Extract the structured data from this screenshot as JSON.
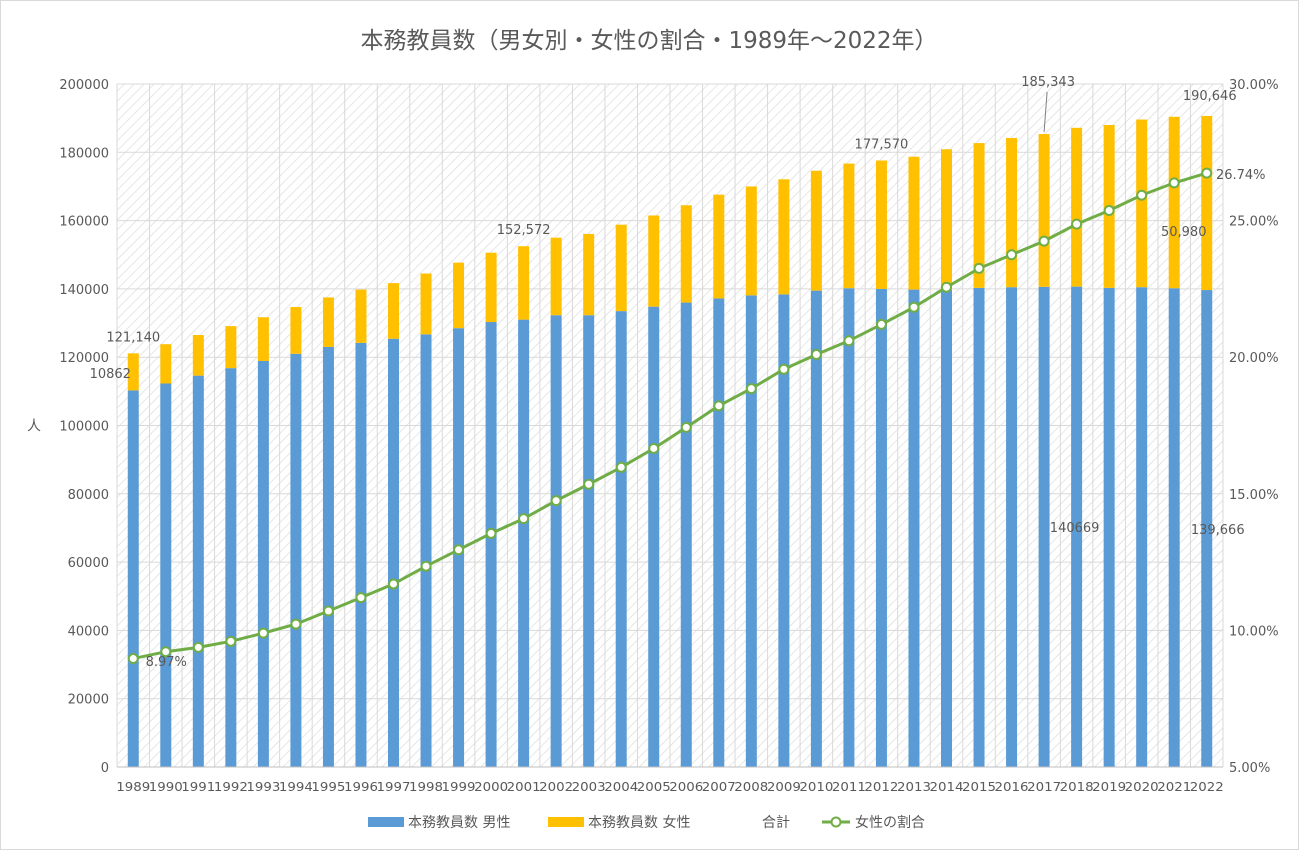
{
  "chart_data": {
    "type": "bar",
    "title": "本務教員数（男女別・女性の割合・1989年～2022年）",
    "ylabel": "人",
    "ylim": [
      0,
      200000
    ],
    "y_ticks": [
      "0",
      "20000",
      "40000",
      "60000",
      "80000",
      "100000",
      "120000",
      "140000",
      "160000",
      "180000",
      "200000"
    ],
    "y2lim": [
      0.05,
      0.3
    ],
    "y2_ticks": [
      "5.00%",
      "10.00%",
      "15.00%",
      "20.00%",
      "25.00%",
      "30.00%"
    ],
    "stacked": true,
    "categories": [
      "1989",
      "1990",
      "1991",
      "1992",
      "1993",
      "1994",
      "1995",
      "1996",
      "1997",
      "1998",
      "1999",
      "2000",
      "2001",
      "2002",
      "2003",
      "2004",
      "2005",
      "2006",
      "2007",
      "2008",
      "2009",
      "2010",
      "2011",
      "2012",
      "2013",
      "2014",
      "2015",
      "2016",
      "2017",
      "2018",
      "2019",
      "2020",
      "2021",
      "2022"
    ],
    "series": [
      {
        "name": "本務教員数 男性",
        "type": "bar",
        "axis": "left",
        "color": "#5B9BD5",
        "values": [
          110278,
          112300,
          114600,
          116800,
          118900,
          121000,
          123000,
          124200,
          125400,
          126700,
          128500,
          130300,
          131000,
          132300,
          132300,
          133500,
          134800,
          136000,
          137200,
          138100,
          138400,
          139500,
          140200,
          140000,
          139800,
          139700,
          140300,
          140500,
          140600,
          140669,
          140300,
          140500,
          140200,
          139666
        ]
      },
      {
        "name": "本務教員数 女性",
        "type": "bar",
        "axis": "left",
        "color": "#FFC000",
        "values": [
          10862,
          11500,
          11900,
          12300,
          12800,
          13700,
          14500,
          15600,
          16300,
          17800,
          19200,
          20300,
          21500,
          22700,
          23800,
          25300,
          26700,
          28500,
          30400,
          31900,
          33700,
          35100,
          36500,
          37600,
          38900,
          41200,
          42400,
          43700,
          44743,
          46500,
          47700,
          49100,
          50200,
          50980
        ]
      },
      {
        "name": "合計",
        "type": "none",
        "axis": "left",
        "color": "#A5A5A5",
        "values": [
          121140,
          123800,
          126500,
          129100,
          131700,
          134700,
          137500,
          139800,
          141700,
          144500,
          147700,
          150600,
          152572,
          155000,
          156100,
          158800,
          161500,
          164500,
          167600,
          170000,
          172100,
          174600,
          176700,
          177570,
          178700,
          180900,
          182700,
          184200,
          185343,
          187169,
          188000,
          189600,
          190400,
          190646
        ]
      },
      {
        "name": "女性の割合",
        "type": "line",
        "axis": "right",
        "color": "#70AD47",
        "values": [
          0.0897,
          0.0922,
          0.0938,
          0.096,
          0.099,
          0.1023,
          0.1071,
          0.112,
          0.117,
          0.1235,
          0.1295,
          0.1355,
          0.1409,
          0.1475,
          0.1535,
          0.1597,
          0.1666,
          0.1743,
          0.1822,
          0.1885,
          0.1956,
          0.201,
          0.206,
          0.212,
          0.2183,
          0.2256,
          0.2325,
          0.2375,
          0.2425,
          0.2487,
          0.2537,
          0.2593,
          0.2638,
          0.2674
        ]
      }
    ],
    "data_labels": [
      {
        "series": 2,
        "index": 0,
        "text": "121,140"
      },
      {
        "series": 1,
        "index": 0,
        "text": "10862"
      },
      {
        "series": 3,
        "index": 0,
        "text": "8.97%"
      },
      {
        "series": 2,
        "index": 12,
        "text": "152,572"
      },
      {
        "series": 2,
        "index": 23,
        "text": "177,570"
      },
      {
        "series": 2,
        "index": 28,
        "text": "185,343"
      },
      {
        "series": 2,
        "index": 33,
        "text": "190,646"
      },
      {
        "series": 3,
        "index": 33,
        "text": "26.74%"
      },
      {
        "series": 1,
        "index": 33,
        "text": "50,980"
      },
      {
        "series": 0,
        "index": 29,
        "text": "140669"
      },
      {
        "series": 0,
        "index": 33,
        "text": "139,666"
      }
    ],
    "legend_position": "bottom",
    "grid": true
  }
}
